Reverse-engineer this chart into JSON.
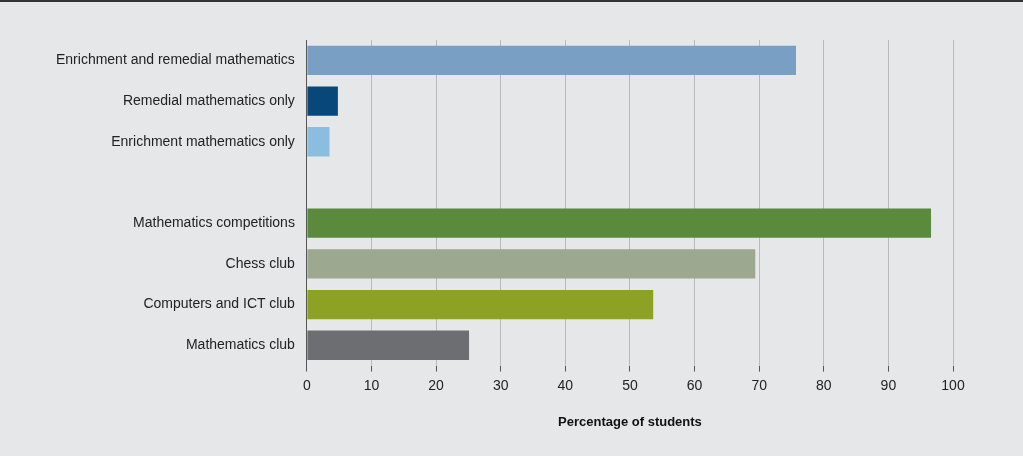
{
  "chart_data": {
    "type": "bar",
    "orientation": "horizontal",
    "xlabel": "Percentage of students",
    "categories": [
      "Enrichment and remedial mathematics",
      "Remedial mathematics only",
      "Enrichment mathematics only",
      null,
      "Mathematics competitions",
      "Chess club",
      "Computers and ICT club",
      "Mathematics club"
    ],
    "values": [
      75.7,
      4.8,
      3.5,
      null,
      96.6,
      69.4,
      53.6,
      25.1
    ],
    "colors": [
      "#7a9fc4",
      "#08477a",
      "#8bbde0",
      "#7a9fc4",
      "#5b8a3c",
      "#9ca88f",
      "#8da124",
      "#6d6e71"
    ],
    "xlim": [
      0,
      100
    ],
    "xticks": [
      0,
      10,
      20,
      30,
      40,
      50,
      60,
      70,
      80,
      90,
      100
    ],
    "grid": "x",
    "legend": false
  }
}
